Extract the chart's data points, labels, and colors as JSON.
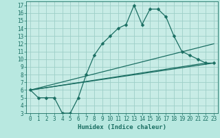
{
  "title": "",
  "xlabel": "Humidex (Indice chaleur)",
  "ylabel": "",
  "background_color": "#b8e8e0",
  "plot_bg_color": "#c8ece6",
  "grid_color": "#9ecfc8",
  "line_color": "#1a6e62",
  "xlim": [
    -0.5,
    23.5
  ],
  "ylim": [
    3,
    17.5
  ],
  "xticks": [
    0,
    1,
    2,
    3,
    4,
    5,
    6,
    7,
    8,
    9,
    10,
    11,
    12,
    13,
    14,
    15,
    16,
    17,
    18,
    19,
    20,
    21,
    22,
    23
  ],
  "yticks": [
    3,
    4,
    5,
    6,
    7,
    8,
    9,
    10,
    11,
    12,
    13,
    14,
    15,
    16,
    17
  ],
  "line1_x": [
    0,
    1,
    2,
    3,
    4,
    5,
    6,
    7,
    8,
    9,
    10,
    11,
    12,
    13,
    14,
    15,
    16,
    17,
    18,
    19,
    20,
    21,
    22,
    23
  ],
  "line1_y": [
    6,
    5,
    5,
    5,
    3,
    3,
    5,
    8,
    10.5,
    12,
    13,
    14,
    14.5,
    17,
    14.5,
    16.5,
    16.5,
    15.5,
    13,
    11,
    10.5,
    10,
    9.5,
    9.5
  ],
  "line2_x": [
    0,
    22
  ],
  "line2_y": [
    6,
    9.5
  ],
  "line3_x": [
    0,
    23
  ],
  "line3_y": [
    6,
    9.5
  ],
  "line4_x": [
    0,
    23
  ],
  "line4_y": [
    6,
    12
  ],
  "markersize": 2.5,
  "linewidth": 0.9,
  "tick_fontsize": 5.5,
  "xlabel_fontsize": 6.5
}
